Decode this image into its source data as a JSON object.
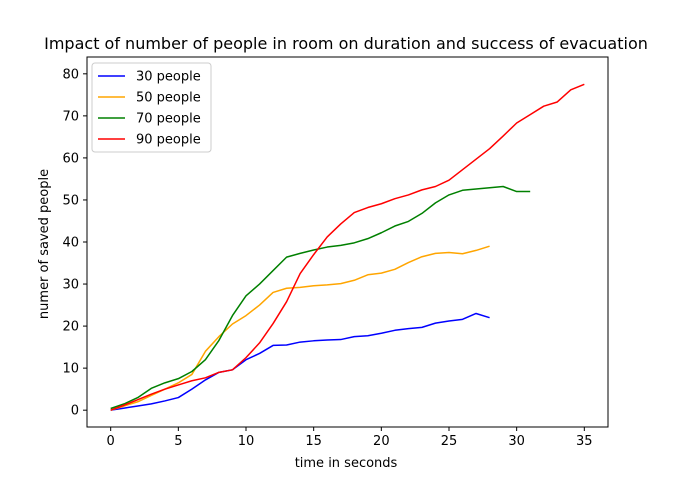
{
  "chart_data": {
    "type": "line",
    "title": "Impact of number of people in room on duration and success of evacuation",
    "xlabel": "time in seconds",
    "ylabel": "numer of saved people",
    "xlim": [
      -1.75,
      36.75
    ],
    "ylim": [
      -4,
      84
    ],
    "xticks": [
      0,
      5,
      10,
      15,
      20,
      25,
      30,
      35
    ],
    "yticks": [
      0,
      10,
      20,
      30,
      40,
      50,
      60,
      70,
      80
    ],
    "grid": false,
    "legend_position": "top-left",
    "series": [
      {
        "name": "30 people",
        "color": "#0000ff",
        "x": [
          0,
          1,
          2,
          3,
          4,
          5,
          6,
          7,
          8,
          9,
          10,
          11,
          12,
          13,
          14,
          15,
          16,
          17,
          18,
          19,
          20,
          21,
          22,
          23,
          24,
          25,
          26,
          27,
          28
        ],
        "y": [
          0,
          0.5,
          1,
          1.5,
          2.2,
          3,
          5,
          7.2,
          9,
          9.6,
          12,
          13.5,
          15.4,
          15.5,
          16.2,
          16.5,
          16.7,
          16.8,
          17.5,
          17.7,
          18.3,
          19,
          19.4,
          19.7,
          20.7,
          21.2,
          21.6,
          23,
          22
        ]
      },
      {
        "name": "50 people",
        "color": "#ffa500",
        "x": [
          0,
          1,
          2,
          3,
          4,
          5,
          6,
          7,
          8,
          9,
          10,
          11,
          12,
          13,
          14,
          15,
          16,
          17,
          18,
          19,
          20,
          21,
          22,
          23,
          24,
          25,
          26,
          27,
          28
        ],
        "y": [
          0,
          1,
          2,
          3.5,
          5,
          6.5,
          8.5,
          14,
          17.5,
          20.5,
          22.5,
          25,
          28,
          29,
          29.2,
          29.6,
          29.8,
          30.1,
          30.9,
          32.2,
          32.6,
          33.5,
          35.1,
          36.5,
          37.3,
          37.5,
          37.2,
          38,
          39
        ]
      },
      {
        "name": "70 people",
        "color": "#008000",
        "x": [
          0,
          1,
          2,
          3,
          4,
          5,
          6,
          7,
          8,
          9,
          10,
          11,
          12,
          13,
          14,
          15,
          16,
          17,
          18,
          19,
          20,
          21,
          22,
          23,
          24,
          25,
          26,
          27,
          28,
          29,
          30,
          31
        ],
        "y": [
          0.4,
          1.5,
          3,
          5.2,
          6.5,
          7.5,
          9.2,
          12,
          16.6,
          22.5,
          27.2,
          30,
          33.2,
          36.4,
          37.3,
          38.1,
          38.8,
          39.2,
          39.8,
          40.8,
          42.2,
          43.8,
          44.9,
          46.8,
          49.3,
          51.2,
          52.3,
          52.6,
          52.9,
          53.2,
          52,
          52
        ]
      },
      {
        "name": "90 people",
        "color": "#ff0000",
        "x": [
          0,
          1,
          2,
          3,
          4,
          5,
          6,
          7,
          8,
          9,
          10,
          11,
          12,
          13,
          14,
          15,
          16,
          17,
          18,
          19,
          20,
          21,
          22,
          23,
          24,
          25,
          26,
          27,
          28,
          29,
          30,
          31,
          32,
          33,
          34,
          35
        ],
        "y": [
          0,
          1.2,
          2.5,
          3.8,
          5,
          6,
          7,
          7.7,
          9,
          9.6,
          12.5,
          16,
          20.6,
          25.8,
          32.5,
          37,
          41.2,
          44.3,
          47,
          48.2,
          49.1,
          50.3,
          51.2,
          52.4,
          53.2,
          54.7,
          57.2,
          59.7,
          62.2,
          65.2,
          68.3,
          70.3,
          72.3,
          73.3,
          76.2,
          77.5
        ]
      }
    ]
  }
}
